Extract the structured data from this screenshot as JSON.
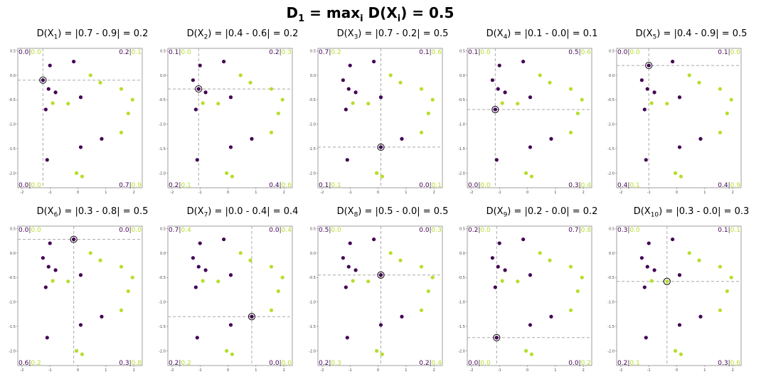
{
  "title": "D₁ = maxᵢ D(Xᵢ) = 0.5",
  "title_parts": {
    "a": "D",
    "sub1": "1",
    "b": " = max",
    "sub2": "i",
    "c": " D(X",
    "sub3": "i",
    "d": ") = 0.5"
  },
  "colors": {
    "purple": "#440154",
    "green": "#b5de2b",
    "guide": "#a9a9a9",
    "frame": "#888888"
  },
  "chart_data": {
    "type": "scatter",
    "points": [
      {
        "x": -1.25,
        "y": -0.1,
        "c": 0
      },
      {
        "x": -1.0,
        "y": 0.2,
        "c": 0
      },
      {
        "x": -0.15,
        "y": 0.28,
        "c": 0
      },
      {
        "x": -1.05,
        "y": -0.28,
        "c": 0
      },
      {
        "x": -0.8,
        "y": -0.35,
        "c": 0
      },
      {
        "x": -1.15,
        "y": -0.7,
        "c": 0
      },
      {
        "x": 0.1,
        "y": -0.45,
        "c": 0
      },
      {
        "x": 0.85,
        "y": -1.3,
        "c": 0
      },
      {
        "x": 0.1,
        "y": -1.47,
        "c": 0
      },
      {
        "x": -1.1,
        "y": -1.73,
        "c": 0
      },
      {
        "x": 0.45,
        "y": 0.0,
        "c": 1
      },
      {
        "x": 0.8,
        "y": -0.15,
        "c": 1
      },
      {
        "x": 1.55,
        "y": -0.28,
        "c": 1
      },
      {
        "x": 1.95,
        "y": -0.5,
        "c": 1
      },
      {
        "x": 1.8,
        "y": -0.78,
        "c": 1
      },
      {
        "x": -0.9,
        "y": -0.57,
        "c": 1
      },
      {
        "x": -0.35,
        "y": -0.58,
        "c": 1
      },
      {
        "x": 1.55,
        "y": -1.17,
        "c": 1
      },
      {
        "x": -0.05,
        "y": -2.0,
        "c": 1
      },
      {
        "x": 0.15,
        "y": -2.07,
        "c": 1
      }
    ],
    "xlim": [
      -2.15,
      2.3
    ],
    "ylim": [
      -2.3,
      0.55
    ],
    "xticks": [
      "-2",
      "-1",
      "0",
      "1",
      "2"
    ],
    "yticks": [
      "0.5",
      "0.0",
      "-0.5",
      "-1.0",
      "-1.5",
      "-2.0"
    ],
    "panels": [
      {
        "t1": "D(X",
        "sub": "1",
        "t2": ") = |0.7 - 0.9| = 0.2",
        "sel": 0,
        "q": {
          "tl": [
            "0.0",
            "0.0"
          ],
          "tr": [
            "0.2",
            "0.1"
          ],
          "bl": [
            "0.0",
            "0.0"
          ],
          "br": [
            "0.7",
            "0.9"
          ]
        }
      },
      {
        "t1": "D(X",
        "sub": "2",
        "t2": ") = |0.4 - 0.6| = 0.2",
        "sel": 3,
        "q": {
          "tl": [
            "0.1",
            "0.0"
          ],
          "tr": [
            "0.2",
            "0.3"
          ],
          "bl": [
            "0.2",
            "0.1"
          ],
          "br": [
            "0.4",
            "0.6"
          ]
        }
      },
      {
        "t1": "D(X",
        "sub": "3",
        "t2": ") = |0.7 - 0.2| = 0.5",
        "sel": 8,
        "q": {
          "tl": [
            "0.7",
            "0.2"
          ],
          "tr": [
            "0.1",
            "0.6"
          ],
          "bl": [
            "0.1",
            "0.1"
          ],
          "br": [
            "0.0",
            "0.1"
          ]
        }
      },
      {
        "t1": "D(X",
        "sub": "4",
        "t2": ") = |0.1 - 0.0| = 0.1",
        "sel": 5,
        "q": {
          "tl": [
            "0.1",
            "0.0"
          ],
          "tr": [
            "0.5",
            "0.6"
          ],
          "bl": [
            "0.0",
            "0.0"
          ],
          "br": [
            "0.3",
            "0.4"
          ]
        }
      },
      {
        "t1": "D(X",
        "sub": "5",
        "t2": ") = |0.4 - 0.9| = 0.5",
        "sel": 1,
        "q": {
          "tl": [
            "0.0",
            "0.0"
          ],
          "tr": [
            "0.1",
            "0.0"
          ],
          "bl": [
            "0.4",
            "0.1"
          ],
          "br": [
            "0.4",
            "0.9"
          ]
        }
      },
      {
        "t1": "D(X",
        "sub": "6",
        "t2": ") = |0.3 - 0.8| = 0.5",
        "sel": 2,
        "q": {
          "tl": [
            "0.0",
            "0.0"
          ],
          "tr": [
            "0.0",
            "0.0"
          ],
          "bl": [
            "0.6",
            "0.2"
          ],
          "br": [
            "0.3",
            "0.8"
          ]
        }
      },
      {
        "t1": "D(X",
        "sub": "7",
        "t2": ") = |0.0 - 0.4| = 0.4",
        "sel": 7,
        "q": {
          "tl": [
            "0.7",
            "0.4"
          ],
          "tr": [
            "0.0",
            "0.4"
          ],
          "bl": [
            "0.2",
            "0.2"
          ],
          "br": [
            "0.0",
            "0.0"
          ]
        }
      },
      {
        "t1": "D(X",
        "sub": "8",
        "t2": ") = |0.5 - 0.0| = 0.5",
        "sel": 6,
        "q": {
          "tl": [
            "0.5",
            "0.0"
          ],
          "tr": [
            "0.0",
            "0.3"
          ],
          "bl": [
            "0.2",
            "0.3"
          ],
          "br": [
            "0.2",
            "0.4"
          ]
        }
      },
      {
        "t1": "D(X",
        "sub": "9",
        "t2": ") = |0.2 - 0.0| = 0.2",
        "sel": 9,
        "q": {
          "tl": [
            "0.2",
            "0.0"
          ],
          "tr": [
            "0.7",
            "0.8"
          ],
          "bl": [
            "0.0",
            "0.0"
          ],
          "br": [
            "0.0",
            "0.2"
          ]
        }
      },
      {
        "t1": "D(X",
        "sub": "10",
        "t2": ") = |0.3 - 0.0| = 0.3",
        "sel": 16,
        "q": {
          "tl": [
            "0.3",
            "0.0"
          ],
          "tr": [
            "0.1",
            "0.1"
          ],
          "bl": [
            "0.2",
            "0.1"
          ],
          "br": [
            "0.3",
            "0.6"
          ]
        }
      }
    ]
  }
}
